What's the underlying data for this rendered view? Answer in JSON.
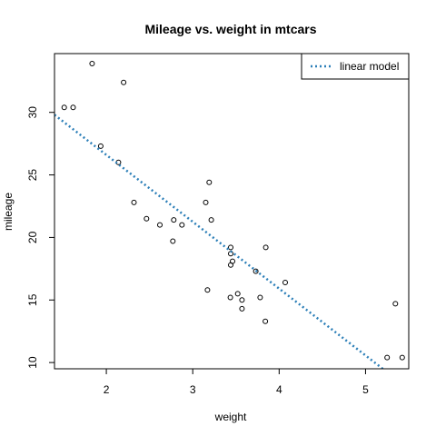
{
  "chart_data": {
    "type": "scatter",
    "title": "Mileage vs. weight in mtcars",
    "xlabel": "weight",
    "ylabel": "mileage",
    "xlim": [
      1.4,
      5.5
    ],
    "ylim": [
      9.5,
      34.7
    ],
    "xticks": [
      2,
      3,
      4,
      5
    ],
    "yticks": [
      10,
      15,
      20,
      25,
      30
    ],
    "xtick_labels": [
      "2",
      "3",
      "4",
      "5"
    ],
    "ytick_labels": [
      "10",
      "15",
      "20",
      "25",
      "30"
    ],
    "grid": false,
    "legend": {
      "position": "top-right",
      "entries": [
        {
          "label": "linear model",
          "style": "dotted",
          "color": "#2c7fb8"
        }
      ]
    },
    "series": [
      {
        "kind": "points",
        "marker": "open-circle",
        "color": "#000000",
        "x": [
          2.62,
          2.875,
          2.32,
          3.215,
          3.44,
          3.46,
          3.57,
          3.19,
          3.15,
          3.44,
          3.44,
          4.07,
          3.73,
          3.78,
          5.25,
          5.424,
          5.345,
          2.2,
          1.615,
          1.835,
          2.465,
          3.52,
          3.435,
          3.84,
          3.845,
          1.935,
          2.14,
          1.513,
          3.17,
          2.77,
          3.57,
          2.78
        ],
        "y": [
          21.0,
          21.0,
          22.8,
          21.4,
          18.7,
          18.1,
          14.3,
          24.4,
          22.8,
          19.2,
          17.8,
          16.4,
          17.3,
          15.2,
          10.4,
          10.4,
          14.7,
          32.4,
          30.4,
          33.9,
          21.5,
          15.5,
          15.2,
          13.3,
          19.2,
          27.3,
          26.0,
          30.4,
          15.8,
          19.7,
          15.0,
          21.4
        ]
      },
      {
        "kind": "line",
        "name": "linear model",
        "style": "dotted",
        "color": "#2c7fb8",
        "intercept": 37.285,
        "slope": -5.344
      }
    ]
  }
}
